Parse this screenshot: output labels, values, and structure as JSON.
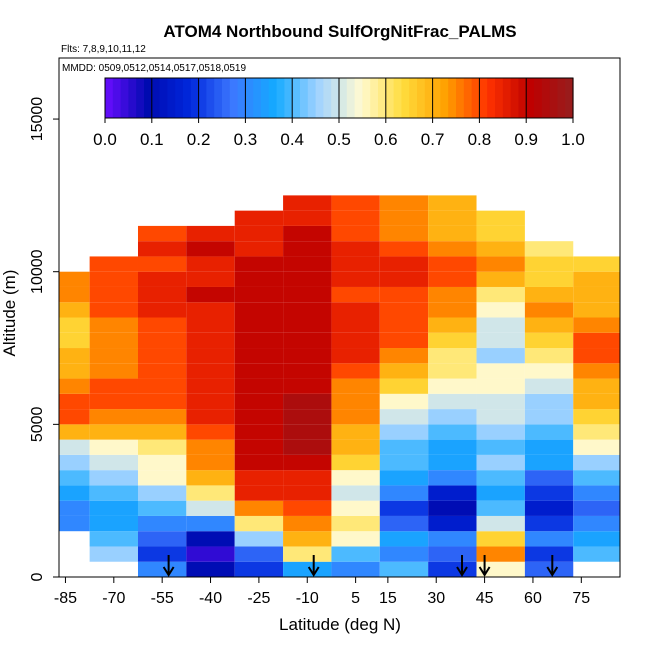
{
  "chart_data": {
    "type": "heatmap",
    "title": "ATOM4 Northbound SulfOrgNitFrac_PALMS",
    "flights_note": "Flts: 7,8,9,10,11,12",
    "dates_note": "MMDD: 0509,0512,0514,0517,0518,0519",
    "xlabel": "Latitude (deg N)",
    "ylabel": "Altitude (m)",
    "xlim": [
      -87,
      87
    ],
    "ylim": [
      0,
      17000
    ],
    "x_ticks": [
      -85,
      -70,
      -55,
      -40,
      -25,
      -10,
      5,
      15,
      30,
      45,
      60,
      75
    ],
    "y_ticks": [
      0,
      5000,
      10000,
      15000
    ],
    "colorbar": {
      "min": 0.0,
      "max": 1.0,
      "ticks": [
        "0.0",
        "0.1",
        "0.2",
        "0.3",
        "0.4",
        "0.5",
        "0.6",
        "0.7",
        "0.8",
        "0.9",
        "1.0"
      ],
      "colors": [
        "#6a0dff",
        "#000ab0",
        "#0028dc",
        "#3c78ff",
        "#14aaff",
        "#a0d2ff",
        "#fffad2",
        "#ffdc3c",
        "#ffa000",
        "#ff3200",
        "#be0000",
        "#961e1e"
      ]
    },
    "latitude_bands": [
      -85,
      -70,
      -55,
      -40,
      -25,
      -10,
      5,
      20,
      35,
      50,
      65,
      80
    ],
    "altitude_bands": [
      250,
      750,
      1250,
      1750,
      2250,
      2750,
      3250,
      3750,
      4250,
      4750,
      5250,
      5750,
      6250,
      6750,
      7250,
      7750,
      8250,
      8750,
      9250,
      9750,
      10250,
      10750,
      11250,
      11750,
      12250
    ],
    "values": [
      [
        null,
        null,
        0.3,
        0.1,
        0.2,
        0.35,
        0.3,
        0.4,
        0.2,
        0.55,
        0.25,
        null
      ],
      [
        null,
        0.45,
        0.2,
        0.05,
        0.25,
        0.6,
        0.4,
        0.3,
        0.25,
        0.75,
        0.2,
        0.4
      ],
      [
        null,
        0.4,
        0.25,
        0.1,
        0.45,
        0.7,
        0.55,
        0.35,
        0.3,
        0.65,
        0.3,
        0.35
      ],
      [
        0.3,
        0.35,
        0.3,
        0.3,
        0.6,
        0.75,
        0.6,
        0.25,
        0.15,
        0.5,
        0.2,
        0.3
      ],
      [
        0.3,
        0.35,
        0.4,
        0.5,
        0.75,
        0.8,
        0.55,
        0.2,
        0.1,
        0.4,
        0.15,
        0.25
      ],
      [
        0.35,
        0.4,
        0.45,
        0.6,
        0.85,
        0.85,
        0.5,
        0.3,
        0.15,
        0.35,
        0.2,
        0.3
      ],
      [
        0.4,
        0.45,
        0.55,
        0.7,
        0.85,
        0.85,
        0.55,
        0.35,
        0.3,
        0.4,
        0.25,
        0.4
      ],
      [
        0.45,
        0.5,
        0.55,
        0.75,
        0.9,
        0.9,
        0.65,
        0.4,
        0.35,
        0.45,
        0.35,
        0.45
      ],
      [
        0.5,
        0.55,
        0.6,
        0.75,
        0.9,
        0.95,
        0.7,
        0.4,
        0.35,
        0.4,
        0.35,
        0.55
      ],
      [
        0.7,
        0.7,
        0.7,
        0.8,
        0.9,
        0.95,
        0.7,
        0.45,
        0.4,
        0.45,
        0.4,
        0.6
      ],
      [
        0.8,
        0.75,
        0.75,
        0.85,
        0.9,
        0.95,
        0.75,
        0.5,
        0.45,
        0.5,
        0.45,
        0.65
      ],
      [
        0.8,
        0.8,
        0.8,
        0.85,
        0.9,
        0.95,
        0.75,
        0.55,
        0.5,
        0.5,
        0.45,
        0.7
      ],
      [
        0.75,
        0.8,
        0.8,
        0.85,
        0.9,
        0.9,
        0.75,
        0.65,
        0.55,
        0.55,
        0.5,
        0.7
      ],
      [
        0.7,
        0.75,
        0.8,
        0.85,
        0.9,
        0.9,
        0.8,
        0.7,
        0.6,
        0.55,
        0.55,
        0.75
      ],
      [
        0.7,
        0.75,
        0.8,
        0.85,
        0.9,
        0.9,
        0.85,
        0.75,
        0.6,
        0.45,
        0.6,
        0.8
      ],
      [
        0.65,
        0.75,
        0.8,
        0.85,
        0.9,
        0.9,
        0.85,
        0.8,
        0.65,
        0.5,
        0.65,
        0.8
      ],
      [
        0.65,
        0.75,
        0.8,
        0.85,
        0.9,
        0.9,
        0.85,
        0.8,
        0.7,
        0.5,
        0.7,
        0.75
      ],
      [
        0.7,
        0.8,
        0.85,
        0.85,
        0.9,
        0.9,
        0.85,
        0.8,
        0.75,
        0.55,
        0.75,
        0.7
      ],
      [
        0.75,
        0.8,
        0.85,
        0.9,
        0.9,
        0.9,
        0.8,
        0.8,
        0.75,
        0.6,
        0.7,
        0.7
      ],
      [
        0.75,
        0.8,
        0.85,
        0.85,
        0.9,
        0.9,
        0.85,
        0.85,
        0.8,
        0.7,
        0.65,
        0.7
      ],
      [
        null,
        0.8,
        0.8,
        0.85,
        0.9,
        0.9,
        0.85,
        0.85,
        0.8,
        0.75,
        0.65,
        0.65
      ],
      [
        null,
        null,
        0.85,
        0.9,
        0.85,
        0.9,
        0.85,
        0.8,
        0.75,
        0.7,
        0.6,
        null
      ],
      [
        null,
        null,
        0.8,
        0.85,
        0.85,
        0.9,
        0.8,
        0.75,
        0.7,
        0.65,
        null,
        null
      ],
      [
        null,
        null,
        null,
        null,
        0.85,
        0.85,
        0.8,
        0.75,
        0.7,
        0.65,
        null,
        null
      ],
      [
        null,
        null,
        null,
        null,
        null,
        0.85,
        0.8,
        0.75,
        0.7,
        null,
        null,
        null
      ]
    ],
    "arrows_latitude": [
      -53,
      -8,
      38,
      45,
      66
    ],
    "grid": false
  }
}
